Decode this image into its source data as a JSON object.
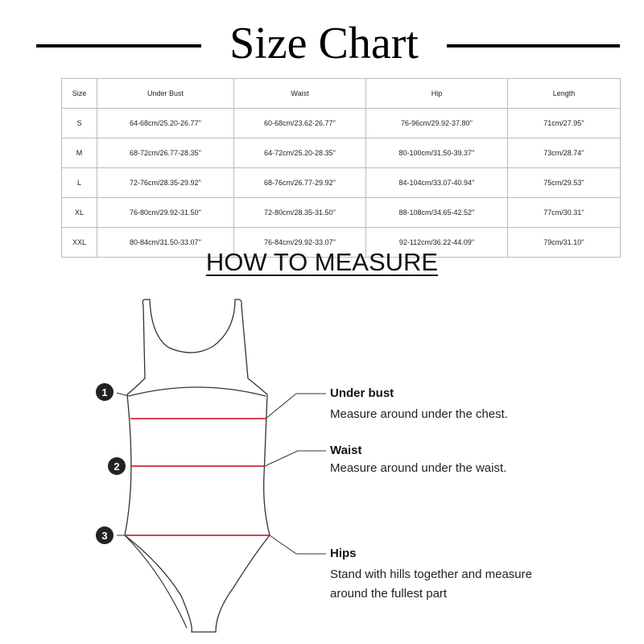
{
  "title": "Size Chart",
  "table": {
    "headers": [
      "Size",
      "Under Bust",
      "Waist",
      "Hip",
      "Length"
    ],
    "rows": [
      [
        "S",
        "64-68cm/25.20-26.77''",
        "60-68cm/23.62-26.77''",
        "76-96cm/29.92-37.80''",
        "71cm/27.95''"
      ],
      [
        "M",
        "68-72cm/26.77-28.35''",
        "64-72cm/25.20-28.35''",
        "80-100cm/31.50-39.37''",
        "73cm/28.74''"
      ],
      [
        "L",
        "72-76cm/28.35-29.92''",
        "68-76cm/26.77-29.92''",
        "84-104cm/33.07-40.94''",
        "75cm/29.53''"
      ],
      [
        "XL",
        "76-80cm/29.92-31.50''",
        "72-80cm/28.35-31.50''",
        "88-108cm/34.65-42.52''",
        "77cm/30.31''"
      ],
      [
        "XXL",
        "80-84cm/31.50-33.07''",
        "76-84cm/29.92-33.07''",
        "92-112cm/36.22-44.09''",
        "79cm/31.10''"
      ]
    ]
  },
  "how_to_measure": {
    "heading": "HOW TO MEASURE",
    "markers": [
      "1",
      "2",
      "3"
    ],
    "items": [
      {
        "label": "Under bust",
        "description": "Measure around under the chest."
      },
      {
        "label": "Waist",
        "description": "Measure around under the waist."
      },
      {
        "label": "Hips",
        "description_lines": [
          "Stand with hills together and measure",
          "around  the fullest part"
        ]
      }
    ],
    "measure_line_color": "#d0021b"
  }
}
